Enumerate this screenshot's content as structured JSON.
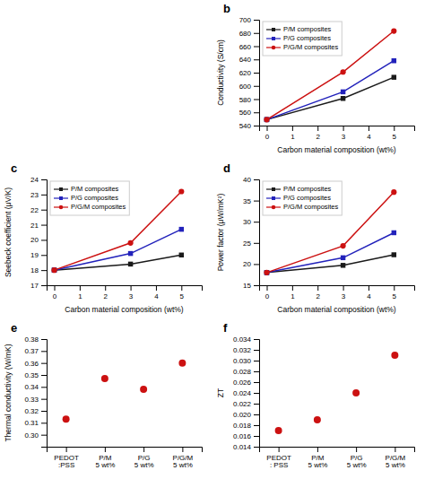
{
  "chart_data": [
    {
      "type": "line",
      "title": "b",
      "x": [
        0,
        3,
        5
      ],
      "x_label": "Carbon material composition (wt%)",
      "y_label": "Conductivity (S/cm)",
      "xlim": [
        -0.3,
        5.8
      ],
      "xticks": [
        0,
        1,
        2,
        3,
        4,
        5
      ],
      "ylim": [
        540,
        700
      ],
      "yticks": [
        540,
        560,
        580,
        600,
        620,
        640,
        660,
        680,
        700
      ],
      "legend": "upper left",
      "series": [
        {
          "name": "P/M composites",
          "color": "#1a1a1a",
          "marker": "square",
          "values": [
            549,
            581,
            613
          ]
        },
        {
          "name": "P/G composites",
          "color": "#2222bb",
          "marker": "square",
          "values": [
            549,
            591,
            638
          ]
        },
        {
          "name": "P/G/M composites",
          "color": "#cc1111",
          "marker": "circle",
          "values": [
            549,
            621,
            683
          ]
        }
      ]
    },
    {
      "type": "line",
      "title": "c",
      "x": [
        0,
        3,
        5
      ],
      "x_label": "Carbon material composition (wt%)",
      "y_label": "Seebeck coefficient (μV/K)",
      "xlim": [
        -0.3,
        5.8
      ],
      "xticks": [
        0,
        1,
        2,
        3,
        4,
        5
      ],
      "ylim": [
        17,
        24
      ],
      "yticks": [
        17,
        18,
        19,
        20,
        21,
        22,
        23,
        24
      ],
      "legend": "upper left",
      "series": [
        {
          "name": "P/M composites",
          "color": "#1a1a1a",
          "marker": "square",
          "values": [
            18.0,
            18.4,
            19.0
          ]
        },
        {
          "name": "P/G composites",
          "color": "#2222bb",
          "marker": "square",
          "values": [
            18.0,
            19.1,
            20.7
          ]
        },
        {
          "name": "P/G/M composites",
          "color": "#cc1111",
          "marker": "circle",
          "values": [
            18.0,
            19.8,
            23.2
          ]
        }
      ]
    },
    {
      "type": "line",
      "title": "d",
      "x": [
        0,
        3,
        5
      ],
      "x_label": "Carbon material composition (wt%)",
      "y_label": "Power factor (μW/mK²)",
      "xlim": [
        -0.3,
        5.8
      ],
      "xticks": [
        0,
        1,
        2,
        3,
        4,
        5
      ],
      "ylim": [
        15,
        40
      ],
      "yticks": [
        15,
        20,
        25,
        30,
        35,
        40
      ],
      "legend": "upper left",
      "series": [
        {
          "name": "P/M composites",
          "color": "#1a1a1a",
          "marker": "square",
          "values": [
            18.0,
            19.7,
            22.2
          ]
        },
        {
          "name": "P/G composites",
          "color": "#2222bb",
          "marker": "square",
          "values": [
            18.0,
            21.5,
            27.4
          ]
        },
        {
          "name": "P/G/M composites",
          "color": "#cc1111",
          "marker": "circle",
          "values": [
            18.0,
            24.3,
            37.0
          ]
        }
      ]
    },
    {
      "type": "scatter",
      "title": "e",
      "categories": [
        "PEDOT\n:PSS",
        "P/M\n5 wt%",
        "P/G\n5 wt%",
        "P/G/M\n5 wt%"
      ],
      "values": [
        0.313,
        0.347,
        0.338,
        0.36
      ],
      "color": "#cc1111",
      "marker": "circle",
      "y_label": "Thermal conductivity (W/mK)",
      "ylim": [
        0.29,
        0.38
      ],
      "yticks": [
        {
          "value": 0.3,
          "label": "0.30"
        },
        0.31,
        0.32,
        0.33,
        0.34,
        0.35,
        0.36,
        0.37,
        0.38
      ]
    },
    {
      "type": "scatter",
      "title": "f",
      "categories": [
        "PEDOT\n: PSS",
        "P/M\n5 wt%",
        "P/G\n5 wt%",
        "P/G/M\n5 wt%"
      ],
      "values": [
        0.017,
        0.019,
        0.024,
        0.031
      ],
      "color": "#cc1111",
      "marker": "circle",
      "y_label": "ZT",
      "ylim": [
        0.014,
        0.034
      ],
      "yticks": [
        0.014,
        0.016,
        0.018,
        {
          "value": 0.02,
          "label": "0.020"
        },
        0.022,
        0.024,
        0.026,
        0.028,
        {
          "value": 0.03,
          "label": "0.030"
        },
        0.032,
        0.034
      ]
    }
  ]
}
